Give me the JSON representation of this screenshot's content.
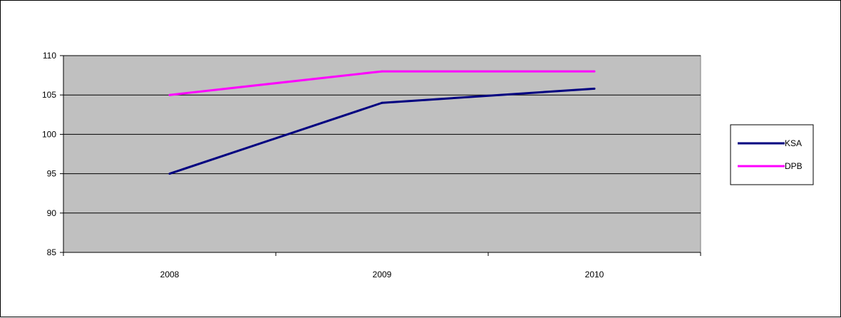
{
  "chart_data": {
    "type": "line",
    "title": "",
    "xlabel": "",
    "ylabel": "",
    "categories": [
      "2008",
      "2009",
      "2010"
    ],
    "ylim": [
      85,
      110
    ],
    "yticks": [
      85,
      90,
      95,
      100,
      105,
      110
    ],
    "grid": true,
    "legend_position": "right",
    "plot_background": "#c0c0c0",
    "series": [
      {
        "name": "KSA",
        "color": "#000080",
        "values": [
          95,
          104,
          105.8
        ]
      },
      {
        "name": "DPB",
        "color": "#ff00ff",
        "values": [
          105,
          108,
          108
        ]
      }
    ]
  }
}
